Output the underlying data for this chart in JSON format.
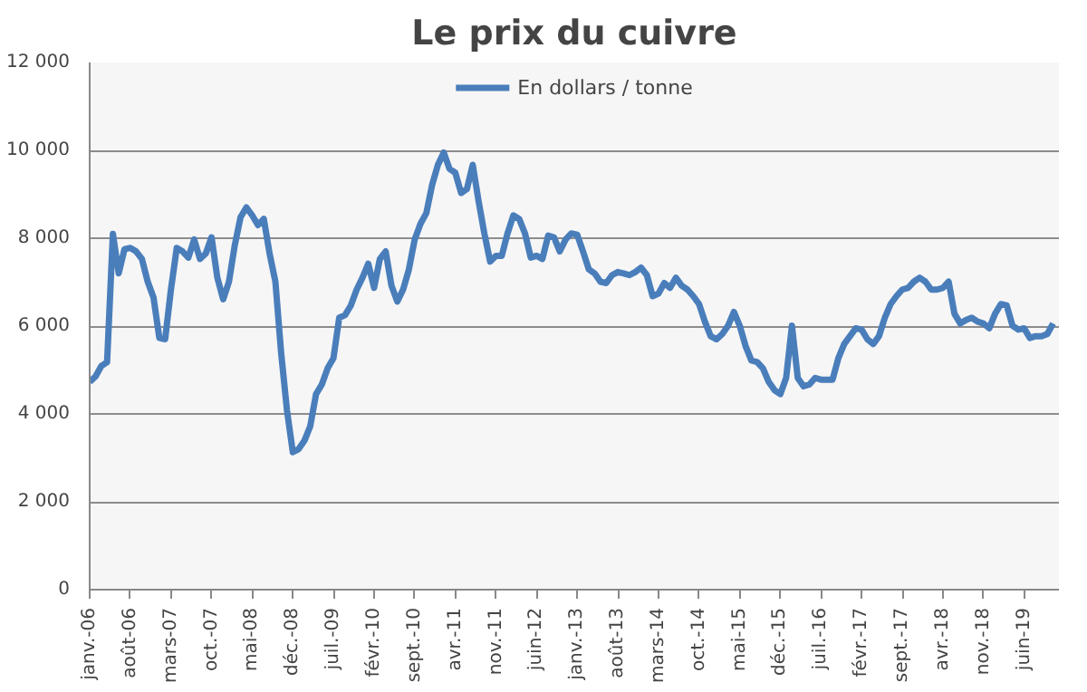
{
  "chart_data": {
    "type": "line",
    "title": "Le prix du cuivre",
    "categories": [
      "janv.-06",
      null,
      null,
      null,
      null,
      null,
      null,
      "août-06",
      null,
      null,
      null,
      null,
      null,
      null,
      "mars-07",
      null,
      null,
      null,
      null,
      null,
      null,
      "oct.-07",
      null,
      null,
      null,
      null,
      null,
      null,
      "mai-08",
      null,
      null,
      null,
      null,
      null,
      null,
      "déc.-08",
      null,
      null,
      null,
      null,
      null,
      null,
      "juil.-09",
      null,
      null,
      null,
      null,
      null,
      null,
      "févr.-10",
      null,
      null,
      null,
      null,
      null,
      null,
      "sept.-10",
      null,
      null,
      null,
      null,
      null,
      null,
      "avr.-11",
      null,
      null,
      null,
      null,
      null,
      null,
      "nov.-11",
      null,
      null,
      null,
      null,
      null,
      null,
      "juin-12",
      null,
      null,
      null,
      null,
      null,
      null,
      "janv.-13",
      null,
      null,
      null,
      null,
      null,
      null,
      "août-13",
      null,
      null,
      null,
      null,
      null,
      null,
      "mars-14",
      null,
      null,
      null,
      null,
      null,
      null,
      "oct.-14",
      null,
      null,
      null,
      null,
      null,
      null,
      "mai-15",
      null,
      null,
      null,
      null,
      null,
      null,
      "déc.-15",
      null,
      null,
      null,
      null,
      null,
      null,
      "juil.-16",
      null,
      null,
      null,
      null,
      null,
      null,
      "févr.-17",
      null,
      null,
      null,
      null,
      null,
      null,
      "sept.-17",
      null,
      null,
      null,
      null,
      null,
      null,
      "avr.-18",
      null,
      null,
      null,
      null,
      null,
      null,
      "nov.-18",
      null,
      null,
      null,
      null,
      null,
      null,
      "juin-19",
      null,
      null,
      null,
      null,
      null
    ],
    "series": [
      {
        "name": "En dollars / tonne",
        "color": "#4a7ebb",
        "values": [
          4730,
          4850,
          5090,
          5180,
          8100,
          7200,
          7750,
          7780,
          7700,
          7530,
          7010,
          6650,
          5730,
          5700,
          6830,
          7780,
          7700,
          7560,
          7970,
          7530,
          7650,
          8020,
          7100,
          6610,
          7010,
          7840,
          8480,
          8700,
          8520,
          8300,
          8440,
          7650,
          7010,
          5370,
          4080,
          3130,
          3200,
          3390,
          3720,
          4450,
          4670,
          5040,
          5270,
          6190,
          6250,
          6470,
          6830,
          7100,
          7420,
          6870,
          7530,
          7700,
          6920,
          6560,
          6830,
          7290,
          7970,
          8330,
          8570,
          9210,
          9670,
          9950,
          9580,
          9490,
          9030,
          9120,
          9670,
          8850,
          8110,
          7470,
          7600,
          7600,
          8110,
          8520,
          8440,
          8110,
          7560,
          7600,
          7530,
          8060,
          8020,
          7700,
          7970,
          8110,
          8080,
          7700,
          7290,
          7200,
          7010,
          6980,
          7160,
          7230,
          7200,
          7160,
          7230,
          7330,
          7160,
          6680,
          6740,
          6980,
          6870,
          7100,
          6920,
          6830,
          6680,
          6500,
          6100,
          5770,
          5700,
          5820,
          6010,
          6320,
          6010,
          5550,
          5220,
          5180,
          5040,
          4730,
          4540,
          4450,
          4820,
          6010,
          4820,
          4630,
          4670,
          4820,
          4780,
          4780,
          4780,
          5270,
          5590,
          5770,
          5950,
          5920,
          5700,
          5590,
          5770,
          6190,
          6500,
          6680,
          6830,
          6870,
          7010,
          7100,
          7010,
          6830,
          6830,
          6870,
          7010,
          6280,
          6060,
          6140,
          6190,
          6100,
          6060,
          5950,
          6280,
          6500,
          6470,
          6010,
          5920,
          5950,
          5730,
          5770,
          5770,
          5820,
          6060
        ]
      }
    ],
    "ylim": [
      0,
      12000
    ],
    "yticks": [
      0,
      {
        "value": 2000,
        "label": "2 000"
      },
      {
        "value": 4000,
        "label": "4 000"
      },
      {
        "value": 6000,
        "label": "6 000"
      },
      {
        "value": 8000,
        "label": "8 000"
      },
      {
        "value": 10000,
        "label": "10 000"
      },
      {
        "value": 12000,
        "label": "12 000"
      }
    ],
    "grid": "y",
    "legend": "top",
    "marker": "none",
    "line_style": "solid"
  }
}
